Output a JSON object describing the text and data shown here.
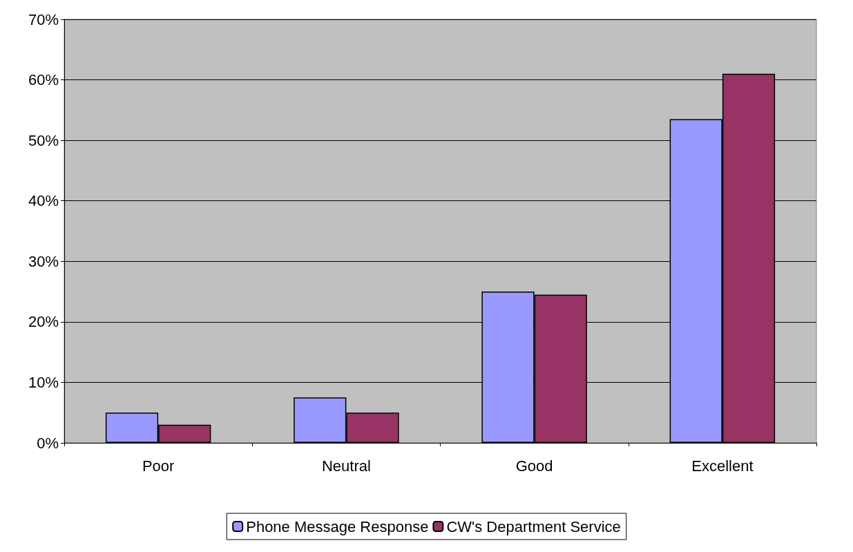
{
  "chart_data": {
    "type": "bar",
    "categories": [
      "Poor",
      "Neutral",
      "Good",
      "Excellent"
    ],
    "series": [
      {
        "name": "Phone Message Response",
        "color": "#9999ff",
        "values": [
          5,
          7.5,
          25,
          53.5
        ]
      },
      {
        "name": "CW's Department Service",
        "color": "#993366",
        "values": [
          3,
          5,
          24.5,
          61
        ]
      }
    ],
    "ylim": [
      0,
      70
    ],
    "yticks": [
      {
        "value": 0,
        "label": "0%"
      },
      {
        "value": 10,
        "label": "10%"
      },
      {
        "value": 20,
        "label": "20%"
      },
      {
        "value": 30,
        "label": "30%"
      },
      {
        "value": 40,
        "label": "40%"
      },
      {
        "value": 50,
        "label": "50%"
      },
      {
        "value": 60,
        "label": "60%"
      },
      {
        "value": 70,
        "label": "70%"
      }
    ],
    "grid": "y",
    "legend": "bottom"
  }
}
